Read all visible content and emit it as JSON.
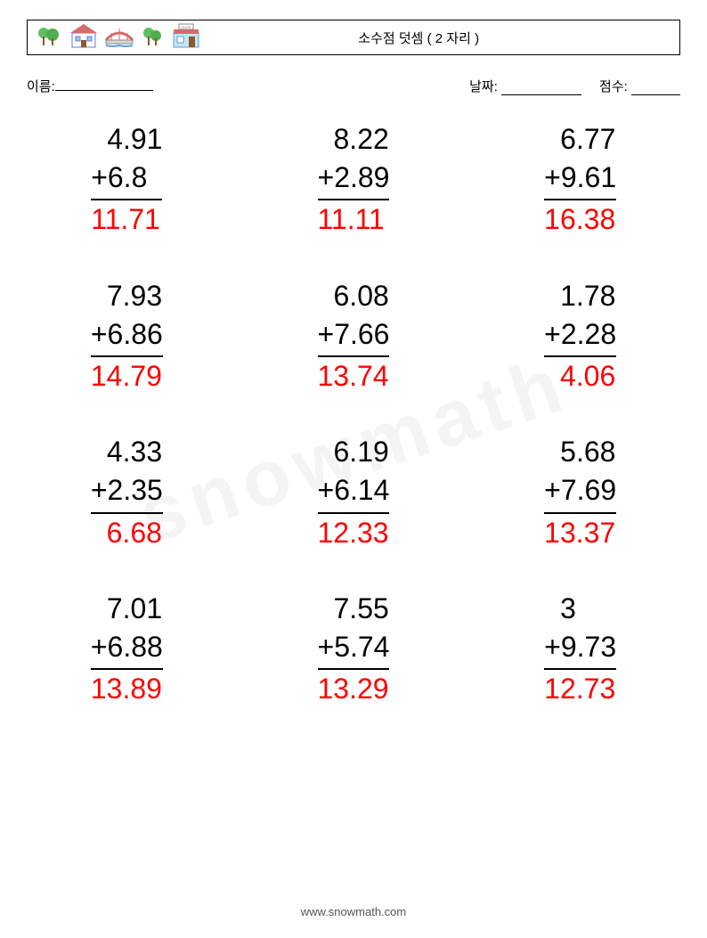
{
  "header": {
    "title": "소수점 덧셈 ( 2 자리 )"
  },
  "info": {
    "name_label": "이름:",
    "name_blank_width": 110,
    "date_label": "날짜:",
    "date_blank_width": 90,
    "score_label": "점수:",
    "score_blank_width": 55
  },
  "styles": {
    "problem_fontsize": 32,
    "answer_color": "#ff0000",
    "text_color": "#000000",
    "rule_color": "#000000",
    "background": "#ffffff"
  },
  "problems": [
    {
      "a": "4.91",
      "b": "+6.8",
      "ans": "11.71"
    },
    {
      "a": "8.22",
      "b": "+2.89",
      "ans": "11.11"
    },
    {
      "a": "6.77",
      "b": "+9.61",
      "ans": "16.38"
    },
    {
      "a": "7.93",
      "b": "+6.86",
      "ans": "14.79"
    },
    {
      "a": "6.08",
      "b": "+7.66",
      "ans": "13.74"
    },
    {
      "a": "1.78",
      "b": "+2.28",
      "ans": "4.06",
      "ans_pad": "  "
    },
    {
      "a": "4.33",
      "b": "+2.35",
      "ans": "6.68",
      "ans_pad": "  "
    },
    {
      "a": "6.19",
      "b": "+6.14",
      "ans": "12.33"
    },
    {
      "a": "5.68",
      "b": "+7.69",
      "ans": "13.37"
    },
    {
      "a": "7.01",
      "b": "+6.88",
      "ans": "13.89"
    },
    {
      "a": "7.55",
      "b": "+5.74",
      "ans": "13.29"
    },
    {
      "a": "3",
      "b": "+9.73",
      "ans": "12.73"
    }
  ],
  "footer": {
    "url": "www.snowmath.com"
  },
  "icons": {
    "names": [
      "tree-icon",
      "house-icon",
      "bridge-icon",
      "tree-icon",
      "shop-icon"
    ]
  }
}
